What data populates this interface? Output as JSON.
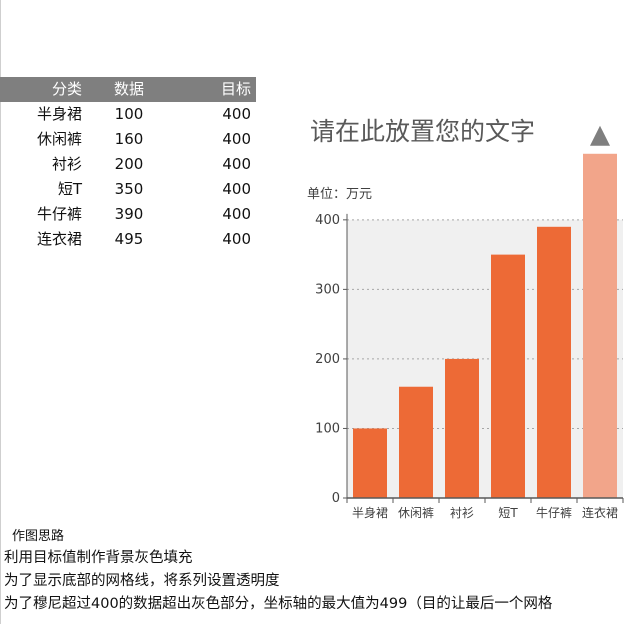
{
  "table": {
    "headers": [
      "分类",
      "数据",
      "目标"
    ],
    "rows": [
      [
        "半身裙",
        "100",
        "400"
      ],
      [
        "休闲裤",
        "160",
        "400"
      ],
      [
        "衬衫",
        "200",
        "400"
      ],
      [
        "短T",
        "350",
        "400"
      ],
      [
        "牛仔裤",
        "390",
        "400"
      ],
      [
        "连衣裙",
        "495",
        "400"
      ]
    ]
  },
  "chart_data": {
    "type": "bar",
    "title": "请在此放置您的文字",
    "unit_label": "单位：万元",
    "categories": [
      "半身裙",
      "休闲裤",
      "衬衫",
      "短T",
      "牛仔裤",
      "连衣裙"
    ],
    "series": [
      {
        "name": "数据",
        "values": [
          100,
          160,
          200,
          350,
          390,
          495
        ]
      },
      {
        "name": "目标",
        "values": [
          400,
          400,
          400,
          400,
          400,
          400
        ]
      }
    ],
    "ylim": [
      0,
      499
    ],
    "yticks": [
      0,
      100,
      200,
      300,
      400
    ],
    "grid": true,
    "colors": {
      "bar": "#ed6a36",
      "bar_highlight": "#f2a58a",
      "target_fill": "#f0f0f0",
      "arrow": "#7f7f7f",
      "grid": "#a6a6a6",
      "axis": "#595959",
      "table_header_bg": "#7f7f7f"
    }
  },
  "notes": {
    "title": "作图思路",
    "lines": [
      "利用目标值制作背景灰色填充",
      "为了显示底部的网格线，将系列设置透明度",
      "为了穆尼超过400的数据超出灰色部分，坐标轴的最大值为499（目的让最后一个网格"
    ]
  }
}
